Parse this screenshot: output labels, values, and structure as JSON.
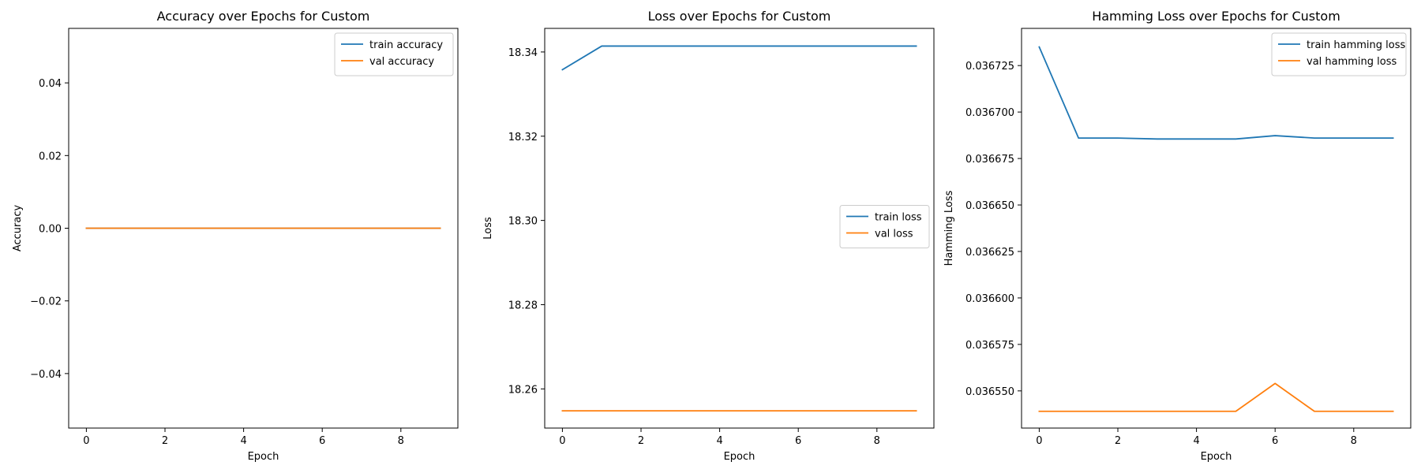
{
  "chart_data": [
    {
      "type": "line",
      "title": "Accuracy over Epochs for Custom",
      "xlabel": "Epoch",
      "ylabel": "Accuracy",
      "xlim": [
        -0.45,
        9.45
      ],
      "ylim": [
        -0.055,
        0.055
      ],
      "xticks": [
        0,
        2,
        4,
        6,
        8
      ],
      "xtick_labels": [
        "0",
        "2",
        "4",
        "6",
        "8"
      ],
      "yticks": [
        -0.04,
        -0.02,
        0.0,
        0.02,
        0.04
      ],
      "ytick_labels": [
        "−0.04",
        "−0.02",
        "0.00",
        "0.02",
        "0.04"
      ],
      "legend_position": "top-right",
      "grid": false,
      "x": [
        0,
        1,
        2,
        3,
        4,
        5,
        6,
        7,
        8,
        9
      ],
      "series": [
        {
          "name": "train accuracy",
          "color": "#1f77b4",
          "values": [
            0,
            0,
            0,
            0,
            0,
            0,
            0,
            0,
            0,
            0
          ]
        },
        {
          "name": "val accuracy",
          "color": "#ff7f0e",
          "values": [
            0,
            0,
            0,
            0,
            0,
            0,
            0,
            0,
            0,
            0
          ]
        }
      ]
    },
    {
      "type": "line",
      "title": "Loss over Epochs for Custom",
      "xlabel": "Epoch",
      "ylabel": "Loss",
      "xlim": [
        -0.45,
        9.45
      ],
      "ylim": [
        18.2507,
        18.3456
      ],
      "xticks": [
        0,
        2,
        4,
        6,
        8
      ],
      "xtick_labels": [
        "0",
        "2",
        "4",
        "6",
        "8"
      ],
      "yticks": [
        18.26,
        18.28,
        18.3,
        18.32,
        18.34
      ],
      "ytick_labels": [
        "18.26",
        "18.28",
        "18.30",
        "18.32",
        "18.34"
      ],
      "legend_position": "center-right",
      "grid": false,
      "x": [
        0,
        1,
        2,
        3,
        4,
        5,
        6,
        7,
        8,
        9
      ],
      "series": [
        {
          "name": "train loss",
          "color": "#1f77b4",
          "values": [
            18.3358,
            18.3414,
            18.3414,
            18.3414,
            18.3414,
            18.3414,
            18.3414,
            18.3414,
            18.3414,
            18.3414
          ]
        },
        {
          "name": "val loss",
          "color": "#ff7f0e",
          "values": [
            18.2548,
            18.2548,
            18.2548,
            18.2548,
            18.2548,
            18.2548,
            18.2548,
            18.2548,
            18.2548,
            18.2548
          ]
        }
      ]
    },
    {
      "type": "line",
      "title": "Hamming Loss over Epochs for Custom",
      "xlabel": "Epoch",
      "ylabel": "Hamming Loss",
      "xlim": [
        -0.45,
        9.45
      ],
      "ylim": [
        0.03653,
        0.036745
      ],
      "xticks": [
        0,
        2,
        4,
        6,
        8
      ],
      "xtick_labels": [
        "0",
        "2",
        "4",
        "6",
        "8"
      ],
      "yticks": [
        0.03655,
        0.036575,
        0.0366,
        0.036625,
        0.03665,
        0.036675,
        0.0367,
        0.036725
      ],
      "ytick_labels": [
        "0.036550",
        "0.036575",
        "0.036600",
        "0.036625",
        "0.036650",
        "0.036675",
        "0.036700",
        "0.036725"
      ],
      "legend_position": "top-right",
      "grid": false,
      "x": [
        0,
        1,
        2,
        3,
        4,
        5,
        6,
        7,
        8,
        9
      ],
      "series": [
        {
          "name": "train hamming loss",
          "color": "#1f77b4",
          "values": [
            0.036735,
            0.036686,
            0.036686,
            0.0366855,
            0.0366855,
            0.0366855,
            0.0366873,
            0.036686,
            0.036686,
            0.036686
          ]
        },
        {
          "name": "val hamming loss",
          "color": "#ff7f0e",
          "values": [
            0.036539,
            0.036539,
            0.036539,
            0.036539,
            0.036539,
            0.036539,
            0.036554,
            0.036539,
            0.036539,
            0.036539
          ]
        }
      ]
    }
  ]
}
